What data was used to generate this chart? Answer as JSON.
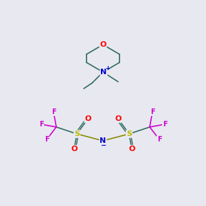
{
  "bg_color": "#e8e8f0",
  "bond_color": "#2d6b5e",
  "bond_lw": 1.2,
  "atom_colors": {
    "O": "#ff0000",
    "N_pos": "#0000cc",
    "N_neg": "#0000cc",
    "S": "#bbbb00",
    "F": "#cc00cc",
    "C": "#2d6b5e"
  },
  "fs_main": 8,
  "fs_small": 7,
  "fs_charge": 6
}
